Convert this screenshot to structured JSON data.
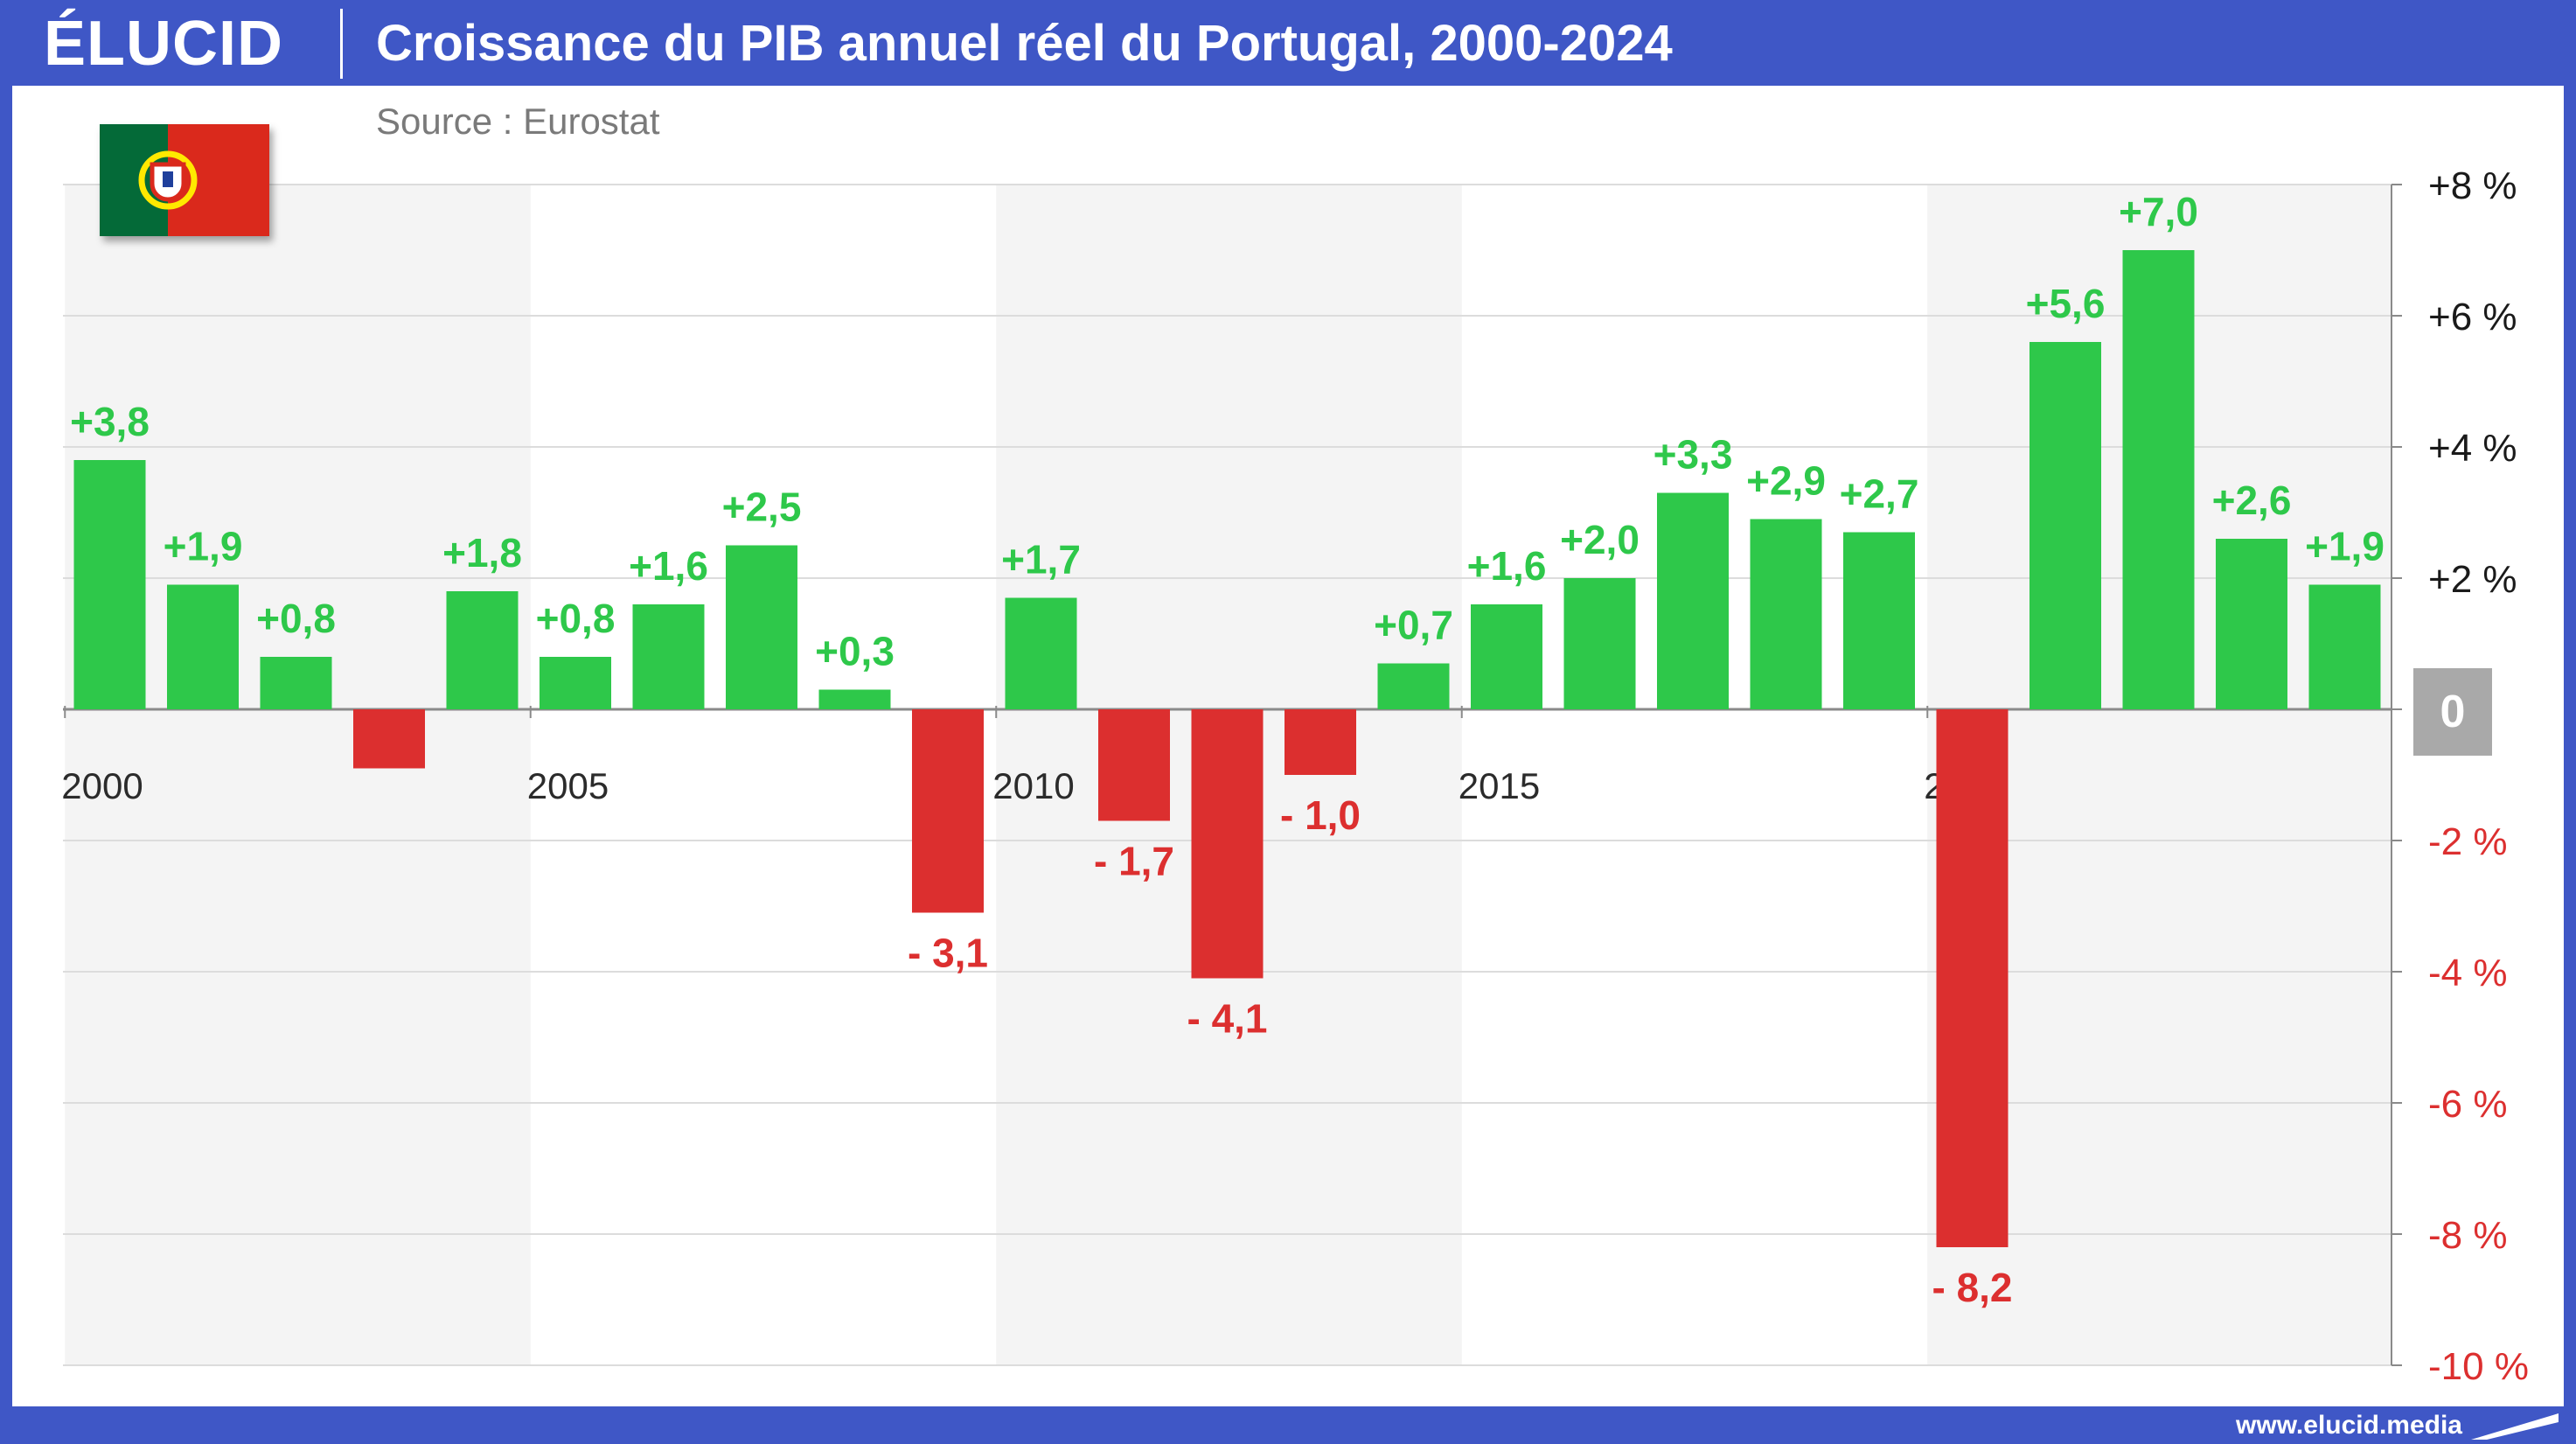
{
  "header": {
    "logo": "ÉLUCID",
    "title": "Croissance du PIB annuel réel du Portugal, 2000-2024",
    "source": "Source : Eurostat"
  },
  "footer": {
    "url": "www.elucid.media"
  },
  "flag": {
    "country": "Portugal",
    "colors": {
      "green": "#046a38",
      "red": "#da291c",
      "yellow": "#ffe900"
    }
  },
  "colors": {
    "positive": "#2ec84a",
    "negative": "#dc2f2f",
    "header": "#3f57c6",
    "band": "#f4f4f4",
    "zero_badge": "#a9a9a9"
  },
  "chart_data": {
    "type": "bar",
    "title": "Croissance du PIB annuel réel du Portugal, 2000-2024",
    "source": "Source : Eurostat",
    "x": [
      2000,
      2001,
      2002,
      2003,
      2004,
      2005,
      2006,
      2007,
      2008,
      2009,
      2010,
      2011,
      2012,
      2013,
      2014,
      2015,
      2016,
      2017,
      2018,
      2019,
      2020,
      2021,
      2022,
      2023,
      2024
    ],
    "values": [
      3.8,
      1.9,
      0.8,
      -0.9,
      1.8,
      0.8,
      1.6,
      2.5,
      0.3,
      -3.1,
      1.7,
      -1.7,
      -4.1,
      -1.0,
      0.7,
      1.6,
      2.0,
      3.3,
      2.9,
      2.7,
      -8.2,
      5.6,
      7.0,
      2.6,
      1.9
    ],
    "data_labels": [
      "+3,8",
      "+1,9",
      "+0,8",
      "",
      "+1,8",
      "+0,8",
      "+1,6",
      "+2,5",
      "+0,3",
      "- 3,1",
      "+1,7",
      "- 1,7",
      "- 4,1",
      "- 1,0",
      "+0,7",
      "+1,6",
      "+2,0",
      "+3,3",
      "+2,9",
      "+2,7",
      "- 8,2",
      "+5,6",
      "+7,0",
      "+2,6",
      "+1,9"
    ],
    "x_tick_labels": [
      {
        "year": 2000,
        "label": "2000"
      },
      {
        "year": 2005,
        "label": "2005"
      },
      {
        "year": 2010,
        "label": "2010"
      },
      {
        "year": 2015,
        "label": "2015"
      },
      {
        "year": 2020,
        "label": "2020"
      }
    ],
    "y_ticks": [
      {
        "value": 8,
        "label": "+8 %"
      },
      {
        "value": 6,
        "label": "+6 %"
      },
      {
        "value": 4,
        "label": "+4 %"
      },
      {
        "value": 2,
        "label": "+2 %"
      },
      {
        "value": 0,
        "label": "0"
      },
      {
        "value": -2,
        "label": "-2 %"
      },
      {
        "value": -4,
        "label": "-4 %"
      },
      {
        "value": -6,
        "label": "-6 %"
      },
      {
        "value": -8,
        "label": "-8 %"
      },
      {
        "value": -10,
        "label": "-10 %"
      }
    ],
    "ylim": [
      -10,
      8
    ],
    "y_axis_side": "right",
    "grid": true,
    "alternating_bands": true
  }
}
